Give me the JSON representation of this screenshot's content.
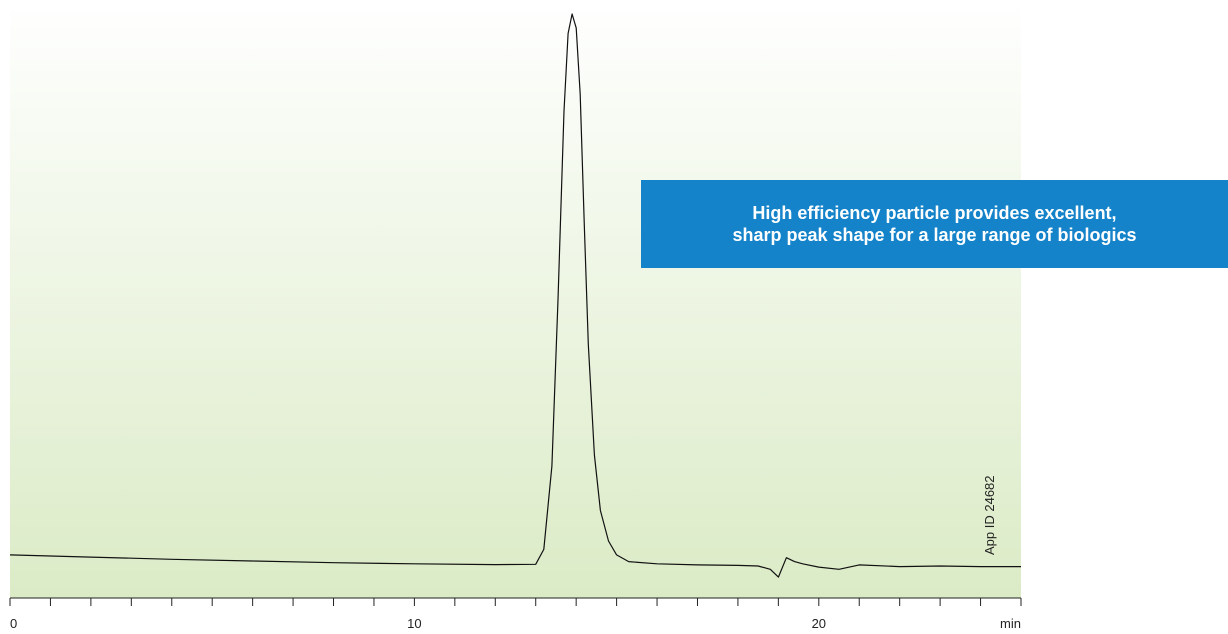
{
  "callout": {
    "line1": "High efficiency particle provides excellent,",
    "line2": "sharp peak shape for a large range of biologics"
  },
  "app_id": "App ID 24682",
  "colors": {
    "background_top": "#ffffff",
    "background_bottom": "#dbebc6",
    "trace": "#111111",
    "callout": "#1483c9"
  },
  "chart_data": {
    "type": "line",
    "xlabel": "min",
    "x_tick_labels": [
      "0",
      "10",
      "20"
    ],
    "xlim": [
      0,
      25
    ],
    "minor_tick_step": 1,
    "grid": false,
    "series": [
      {
        "x": [
          0,
          2,
          4,
          6,
          8,
          10,
          12,
          13.0,
          13.2,
          13.4,
          13.55,
          13.7,
          13.8,
          13.9,
          14.0,
          14.1,
          14.2,
          14.3,
          14.45,
          14.6,
          14.8,
          15.0,
          15.3,
          16,
          17,
          18,
          18.5,
          18.8,
          19.0,
          19.2,
          19.4,
          19.6,
          20,
          20.5,
          21,
          22,
          23,
          24,
          25
        ],
        "y": [
          2.0,
          1.6,
          1.2,
          0.9,
          0.6,
          0.4,
          0.25,
          0.3,
          3,
          18,
          48,
          82,
          96,
          99.5,
          97,
          85,
          62,
          40,
          20,
          10,
          4.5,
          2.0,
          0.8,
          0.4,
          0.2,
          0.1,
          0.0,
          -0.6,
          -2.0,
          1.5,
          0.8,
          0.4,
          -0.2,
          -0.6,
          0.2,
          -0.1,
          0.0,
          -0.1,
          -0.1
        ]
      }
    ]
  }
}
